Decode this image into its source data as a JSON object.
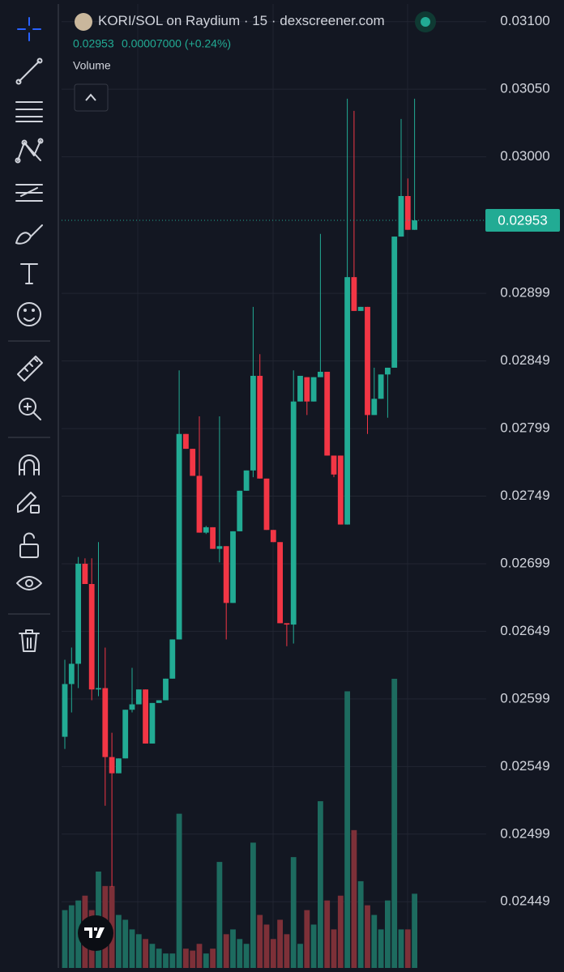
{
  "chart_data": {
    "type": "candlestick",
    "title": "KORI/SOL on Raydium",
    "interval": "15",
    "source": "dexscreener.com",
    "legend_price": "0.02953",
    "legend_change": "0.00007000 (+0.24%)",
    "volume_label": "Volume",
    "last_price": 0.02953,
    "up_color": "#22ab94",
    "down_color": "#f23645",
    "volume_up_color": "#1d6b5f",
    "volume_down_color": "#7d3038",
    "ylim": [
      0.024,
      0.03113
    ],
    "yticks": [
      {
        "value": 0.031,
        "label": "0.03100"
      },
      {
        "value": 0.0305,
        "label": "0.03050"
      },
      {
        "value": 0.03,
        "label": "0.03000"
      },
      0.02899,
      0.02849,
      0.02799,
      0.02749,
      0.02699,
      0.02649,
      0.02599,
      0.02549,
      0.02499,
      0.02449
    ],
    "vlim": [
      0,
      1000
    ],
    "open": [
      0.02571,
      0.0261,
      0.02625,
      0.02699,
      0.02684,
      0.02606,
      0.02607,
      0.02556,
      0.02544,
      0.02555,
      0.02591,
      0.02595,
      0.02606,
      0.02566,
      0.02596,
      0.02598,
      0.02614,
      0.02643,
      0.02795,
      0.02784,
      0.02764,
      0.02722,
      0.02726,
      0.0271,
      0.02712,
      0.0267,
      0.02723,
      0.02753,
      0.02768,
      0.02838,
      0.02762,
      0.02724,
      0.02715,
      0.02655,
      0.02654,
      0.02819,
      0.02837,
      0.02819,
      0.02837,
      0.02841,
      0.02779,
      0.02779,
      0.02728,
      0.02911,
      0.02886,
      0.02889,
      0.02809,
      0.02821,
      0.02839,
      0.02844,
      0.02941,
      0.02971,
      0.02946
    ],
    "high": [
      0.02628,
      0.02637,
      0.02704,
      0.02703,
      0.02703,
      0.02715,
      0.02637,
      0.02574,
      0.02555,
      0.02591,
      0.02622,
      0.02606,
      0.02606,
      0.02596,
      0.02598,
      0.02614,
      0.02643,
      0.02842,
      0.02795,
      0.02784,
      0.02808,
      0.02727,
      0.02726,
      0.02808,
      0.02712,
      0.02723,
      0.02753,
      0.02768,
      0.02889,
      0.02854,
      0.02762,
      0.02724,
      0.02715,
      0.02655,
      0.02842,
      0.02838,
      0.02837,
      0.02837,
      0.02943,
      0.02841,
      0.02779,
      0.02779,
      0.03043,
      0.03034,
      0.02889,
      0.02889,
      0.02844,
      0.02839,
      0.02844,
      0.02941,
      0.03028,
      0.02984,
      0.03043
    ],
    "low": [
      0.02562,
      0.02589,
      0.02607,
      0.02684,
      0.02598,
      0.02601,
      0.0252,
      0.0246,
      0.02544,
      0.02555,
      0.02589,
      0.02595,
      0.02566,
      0.02566,
      0.02596,
      0.02598,
      0.02614,
      0.02643,
      0.02784,
      0.02764,
      0.02722,
      0.02721,
      0.0271,
      0.027,
      0.02643,
      0.0267,
      0.02723,
      0.02753,
      0.02763,
      0.02762,
      0.02724,
      0.02715,
      0.02655,
      0.02638,
      0.0264,
      0.02819,
      0.02809,
      0.02819,
      0.02837,
      0.02779,
      0.02763,
      0.02728,
      0.02728,
      0.02886,
      0.02886,
      0.02795,
      0.02809,
      0.02821,
      0.02807,
      0.02844,
      0.02941,
      0.02946,
      0.02946
    ],
    "close": [
      0.0261,
      0.02625,
      0.02699,
      0.02684,
      0.02606,
      0.02607,
      0.02556,
      0.02544,
      0.02555,
      0.02591,
      0.02595,
      0.02606,
      0.02566,
      0.02596,
      0.02598,
      0.02614,
      0.02643,
      0.02795,
      0.02784,
      0.02764,
      0.02722,
      0.02726,
      0.0271,
      0.02712,
      0.0267,
      0.02723,
      0.02753,
      0.02768,
      0.02838,
      0.02762,
      0.02724,
      0.02715,
      0.02655,
      0.02654,
      0.02819,
      0.02838,
      0.02819,
      0.02837,
      0.02841,
      0.02779,
      0.02765,
      0.02728,
      0.02911,
      0.02886,
      0.02889,
      0.02809,
      0.02821,
      0.02839,
      0.02844,
      0.02941,
      0.02971,
      0.02946,
      0.02953
    ],
    "volumes": [
      60,
      65,
      70,
      75,
      60,
      100,
      85,
      85,
      55,
      50,
      40,
      35,
      30,
      25,
      20,
      15,
      15,
      160,
      20,
      18,
      25,
      15,
      20,
      110,
      35,
      40,
      30,
      25,
      130,
      55,
      45,
      30,
      50,
      35,
      115,
      25,
      60,
      45,
      173,
      70,
      40,
      75,
      287,
      143,
      90,
      65,
      55,
      40,
      70,
      300,
      40,
      40,
      77
    ]
  }
}
